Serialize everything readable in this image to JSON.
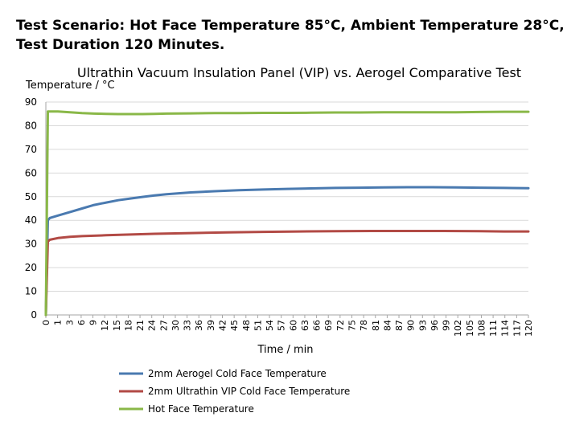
{
  "header": {
    "line1": "Test Scenario: Hot Face Temperature 85°C, Ambient Temperature 28°C,",
    "line2": "Test Duration 120 Minutes."
  },
  "chart_data": {
    "type": "line",
    "title": "Ultrathin Vacuum Insulation Panel (VIP) vs. Aerogel Comparative Test",
    "xlabel": "Time / min",
    "ylabel": "Temperature / °C",
    "ylim": [
      0,
      90
    ],
    "yticks": [
      0,
      10,
      20,
      30,
      40,
      50,
      60,
      70,
      80,
      90
    ],
    "xlim": [
      0,
      120
    ],
    "xtick_labels": [
      "0",
      "1",
      "3",
      "6",
      "9",
      "12",
      "15",
      "18",
      "21",
      "24",
      "27",
      "30",
      "33",
      "36",
      "39",
      "42",
      "45",
      "48",
      "51",
      "54",
      "57",
      "60",
      "63",
      "66",
      "69",
      "72",
      "75",
      "78",
      "81",
      "84",
      "87",
      "90",
      "93",
      "96",
      "99",
      "102",
      "105",
      "108",
      "111",
      "114",
      "117",
      "120"
    ],
    "grid": true,
    "legend_position": "bottom",
    "colors": {
      "aerogel": "#4a7ab0",
      "vip": "#b24a45",
      "hot": "#8ab848"
    },
    "series": [
      {
        "name": "2mm Aerogel Cold Face Temperature",
        "color": "#4a7ab0",
        "x": [
          0,
          0.5,
          1,
          3,
          6,
          9,
          12,
          15,
          18,
          21,
          24,
          27,
          30,
          36,
          42,
          48,
          54,
          60,
          66,
          72,
          78,
          84,
          90,
          96,
          102,
          108,
          114,
          120
        ],
        "y": [
          0,
          40,
          41,
          42,
          43.5,
          45,
          46.5,
          47.5,
          48.5,
          49.2,
          49.9,
          50.5,
          51,
          51.8,
          52.3,
          52.7,
          53,
          53.3,
          53.5,
          53.7,
          53.8,
          53.9,
          54,
          54,
          53.9,
          53.8,
          53.7,
          53.6
        ]
      },
      {
        "name": "2mm Ultrathin VIP Cold Face Temperature",
        "color": "#b24a45",
        "x": [
          0,
          0.5,
          1,
          3,
          6,
          9,
          15,
          21,
          27,
          36,
          45,
          54,
          63,
          72,
          81,
          90,
          99,
          108,
          114,
          120
        ],
        "y": [
          0,
          31,
          31.8,
          32.5,
          33,
          33.3,
          33.7,
          34,
          34.3,
          34.6,
          34.9,
          35.1,
          35.3,
          35.4,
          35.5,
          35.5,
          35.5,
          35.4,
          35.3,
          35.3
        ]
      },
      {
        "name": "Hot Face Temperature",
        "color": "#8ab848",
        "x": [
          0,
          0.5,
          1,
          3,
          6,
          9,
          12,
          15,
          18,
          21,
          24,
          27,
          30,
          36,
          42,
          48,
          54,
          60,
          66,
          72,
          78,
          84,
          90,
          96,
          102,
          108,
          114,
          120
        ],
        "y": [
          0,
          86,
          86,
          86,
          85.7,
          85.3,
          85.1,
          85,
          84.9,
          84.9,
          84.9,
          85,
          85.1,
          85.2,
          85.3,
          85.3,
          85.4,
          85.4,
          85.5,
          85.6,
          85.6,
          85.7,
          85.7,
          85.7,
          85.7,
          85.8,
          85.9,
          85.9
        ]
      }
    ]
  }
}
